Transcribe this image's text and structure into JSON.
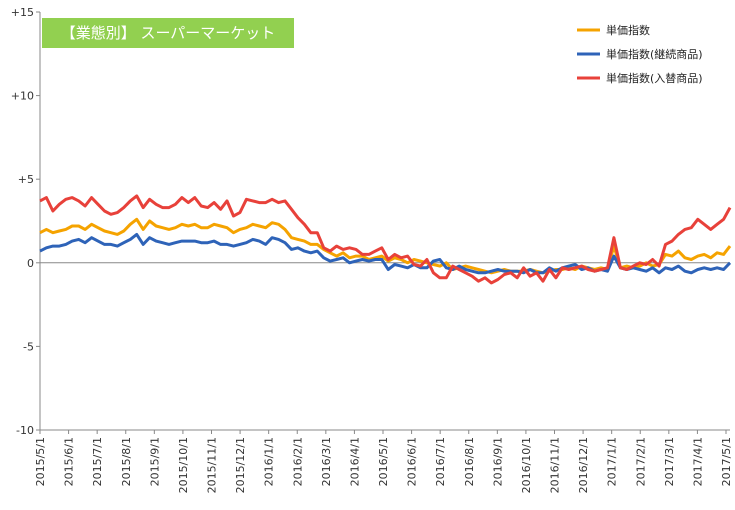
{
  "chart_data": {
    "type": "line",
    "title": "【業態別】 スーパーマーケット",
    "title_bg_color": "#92d050",
    "ylim": [
      -10,
      15
    ],
    "y_ticks": [
      15,
      10,
      5,
      0,
      -5,
      -10
    ],
    "y_tick_labels": [
      "+15",
      "+10",
      "+5",
      "0",
      "-5",
      "-10"
    ],
    "x_tick_labels": [
      "2015/5/1",
      "2015/6/1",
      "2015/7/1",
      "2015/8/1",
      "2015/9/1",
      "2015/10/1",
      "2015/11/1",
      "2015/12/1",
      "2016/1/1",
      "2016/2/1",
      "2016/3/1",
      "2016/4/1",
      "2016/5/1",
      "2016/6/1",
      "2016/7/1",
      "2016/8/1",
      "2016/9/1",
      "2016/10/1",
      "2016/11/1",
      "2016/12/1",
      "2017/1/1",
      "2017/2/1",
      "2017/3/1",
      "2017/4/1",
      "2017/5/1"
    ],
    "grid": "horizontal-zero-line-only",
    "legend_position": "top-right",
    "series": [
      {
        "name": "単価指数",
        "color": "#f5a300",
        "values": [
          1.8,
          2.0,
          1.8,
          1.9,
          2.0,
          2.2,
          2.2,
          2.0,
          2.3,
          2.1,
          1.9,
          1.8,
          1.7,
          1.9,
          2.3,
          2.6,
          2.0,
          2.5,
          2.2,
          2.1,
          2.0,
          2.1,
          2.3,
          2.2,
          2.3,
          2.1,
          2.1,
          2.3,
          2.2,
          2.1,
          1.8,
          2.0,
          2.1,
          2.3,
          2.2,
          2.1,
          2.4,
          2.3,
          2.0,
          1.5,
          1.4,
          1.3,
          1.1,
          1.1,
          0.8,
          0.6,
          0.4,
          0.6,
          0.3,
          0.4,
          0.4,
          0.2,
          0.3,
          0.4,
          0.1,
          0.3,
          0.2,
          0.0,
          0.2,
          0.1,
          0.0,
          -0.1,
          -0.2,
          0.0,
          -0.4,
          -0.3,
          -0.2,
          -0.3,
          -0.4,
          -0.5,
          -0.6,
          -0.5,
          -0.4,
          -0.5,
          -0.5,
          -0.5,
          -0.4,
          -0.5,
          -0.6,
          -0.5,
          -0.4,
          -0.4,
          -0.3,
          -0.4,
          -0.2,
          -0.3,
          -0.4,
          -0.3,
          -0.4,
          1.0,
          -0.3,
          -0.2,
          -0.3,
          -0.2,
          0.0,
          -0.2,
          -0.1,
          0.5,
          0.4,
          0.7,
          0.3,
          0.2,
          0.4,
          0.5,
          0.3,
          0.6,
          0.5,
          1.0
        ]
      },
      {
        "name": "単価指数(継続商品)",
        "color": "#2e63b8",
        "values": [
          0.7,
          0.9,
          1.0,
          1.0,
          1.1,
          1.3,
          1.4,
          1.2,
          1.5,
          1.3,
          1.1,
          1.1,
          1.0,
          1.2,
          1.4,
          1.7,
          1.1,
          1.5,
          1.3,
          1.2,
          1.1,
          1.2,
          1.3,
          1.3,
          1.3,
          1.2,
          1.2,
          1.3,
          1.1,
          1.1,
          1.0,
          1.1,
          1.2,
          1.4,
          1.3,
          1.1,
          1.5,
          1.4,
          1.2,
          0.8,
          0.9,
          0.7,
          0.6,
          0.7,
          0.3,
          0.1,
          0.2,
          0.3,
          0.0,
          0.1,
          0.2,
          0.1,
          0.2,
          0.2,
          -0.4,
          -0.1,
          -0.2,
          -0.3,
          -0.1,
          -0.3,
          -0.3,
          0.1,
          0.2,
          -0.3,
          -0.4,
          -0.2,
          -0.4,
          -0.5,
          -0.6,
          -0.6,
          -0.5,
          -0.4,
          -0.5,
          -0.5,
          -0.5,
          -0.6,
          -0.4,
          -0.6,
          -0.6,
          -0.3,
          -0.5,
          -0.3,
          -0.2,
          -0.1,
          -0.4,
          -0.3,
          -0.5,
          -0.4,
          -0.5,
          0.4,
          -0.3,
          -0.4,
          -0.3,
          -0.4,
          -0.5,
          -0.3,
          -0.6,
          -0.3,
          -0.4,
          -0.2,
          -0.5,
          -0.6,
          -0.4,
          -0.3,
          -0.4,
          -0.3,
          -0.4,
          0.0
        ]
      },
      {
        "name": "単価指数(入替商品)",
        "color": "#e8413a",
        "values": [
          3.7,
          3.9,
          3.1,
          3.5,
          3.8,
          3.9,
          3.7,
          3.4,
          3.9,
          3.5,
          3.1,
          2.9,
          3.0,
          3.3,
          3.7,
          4.0,
          3.3,
          3.8,
          3.5,
          3.3,
          3.3,
          3.5,
          3.9,
          3.6,
          3.9,
          3.4,
          3.3,
          3.6,
          3.2,
          3.7,
          2.8,
          3.0,
          3.8,
          3.7,
          3.6,
          3.6,
          3.8,
          3.6,
          3.7,
          3.2,
          2.7,
          2.3,
          1.8,
          1.8,
          0.9,
          0.7,
          1.0,
          0.8,
          0.9,
          0.8,
          0.5,
          0.5,
          0.7,
          0.9,
          0.2,
          0.5,
          0.3,
          0.4,
          -0.1,
          -0.2,
          0.2,
          -0.6,
          -0.9,
          -0.9,
          -0.2,
          -0.4,
          -0.6,
          -0.8,
          -1.1,
          -0.9,
          -1.2,
          -1.0,
          -0.7,
          -0.6,
          -0.9,
          -0.3,
          -0.8,
          -0.6,
          -1.1,
          -0.4,
          -0.9,
          -0.3,
          -0.4,
          -0.3,
          -0.2,
          -0.4,
          -0.5,
          -0.4,
          -0.3,
          1.5,
          -0.3,
          -0.4,
          -0.2,
          0.0,
          -0.1,
          0.2,
          -0.2,
          1.1,
          1.3,
          1.7,
          2.0,
          2.1,
          2.6,
          2.3,
          2.0,
          2.3,
          2.6,
          3.3
        ]
      }
    ]
  }
}
